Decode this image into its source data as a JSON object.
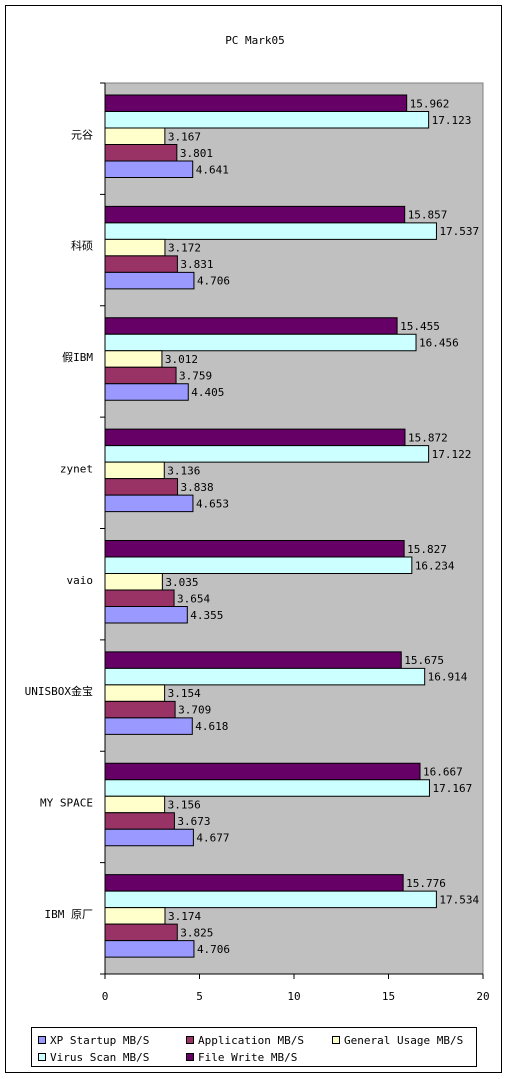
{
  "chart_data": {
    "type": "bar",
    "orientation": "horizontal",
    "title": "PC Mark05",
    "categories": [
      "元谷",
      "科硕",
      "假IBM",
      "zynet",
      "vaio",
      "UNISBOX金宝",
      "MY SPACE",
      "IBM 原厂"
    ],
    "series": [
      {
        "name": "File Write  MB/S",
        "color": "#660066",
        "values": [
          15.962,
          15.857,
          15.455,
          15.872,
          15.827,
          15.675,
          16.667,
          15.776
        ]
      },
      {
        "name": "Virus Scan  MB/S",
        "color": "#ccffff",
        "values": [
          17.123,
          17.537,
          16.456,
          17.122,
          16.234,
          16.914,
          17.167,
          17.534
        ]
      },
      {
        "name": "General Usage  MB/S",
        "color": "#ffffcc",
        "values": [
          3.167,
          3.172,
          3.012,
          3.136,
          3.035,
          3.154,
          3.156,
          3.174
        ]
      },
      {
        "name": "Application  MB/S",
        "color": "#993366",
        "values": [
          3.801,
          3.831,
          3.759,
          3.838,
          3.654,
          3.709,
          3.673,
          3.825
        ]
      },
      {
        "name": "XP Startup  MB/S",
        "color": "#9999ff",
        "values": [
          4.641,
          4.706,
          4.405,
          4.653,
          4.355,
          4.618,
          4.677,
          4.706
        ]
      }
    ],
    "value_labels": [
      [
        "15.962",
        "15.857",
        "15.455",
        "15.872",
        "15.827",
        "15.675",
        "16.667",
        "15.776"
      ],
      [
        "17.123",
        "17.537",
        "16.456",
        "17.122",
        "16.234",
        "16.914",
        "17.167",
        "17.534"
      ],
      [
        "3.167",
        "3.172",
        "3.012",
        "3.136",
        "3.035",
        "3.154",
        "3.156",
        "3.174"
      ],
      [
        "3.801",
        "3.831",
        "3.759",
        "3.838",
        "3.654",
        "3.709",
        "3.673",
        "3.825"
      ],
      [
        "4.641",
        "4.706",
        "4.405",
        "4.653",
        "4.355",
        "4.618",
        "4.677",
        "4.706"
      ]
    ],
    "xlim": [
      0,
      20
    ],
    "xticks": [
      "0",
      "5",
      "10",
      "15",
      "20"
    ],
    "grid": false,
    "plot_background": "#c0c0c0",
    "legend_entries": [
      {
        "name": "XP Startup  MB/S",
        "color": "#9999ff"
      },
      {
        "name": "Application  MB/S",
        "color": "#993366"
      },
      {
        "name": "General Usage  MB/S",
        "color": "#ffffcc"
      },
      {
        "name": "Virus Scan  MB/S",
        "color": "#ccffff"
      },
      {
        "name": "File Write  MB/S",
        "color": "#660066"
      }
    ],
    "legend_position": "bottom"
  }
}
